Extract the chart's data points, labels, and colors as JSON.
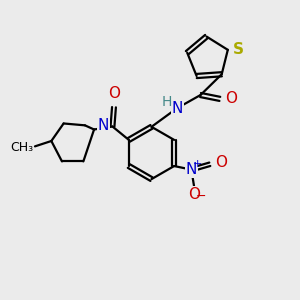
{
  "bg_color": "#ebebeb",
  "bond_color": "#000000",
  "bond_width": 1.6,
  "atom_colors": {
    "C": "#000000",
    "N": "#0000cc",
    "O": "#cc0000",
    "S": "#aaaa00",
    "H": "#448888"
  },
  "font_size": 11,
  "font_size_small": 9
}
